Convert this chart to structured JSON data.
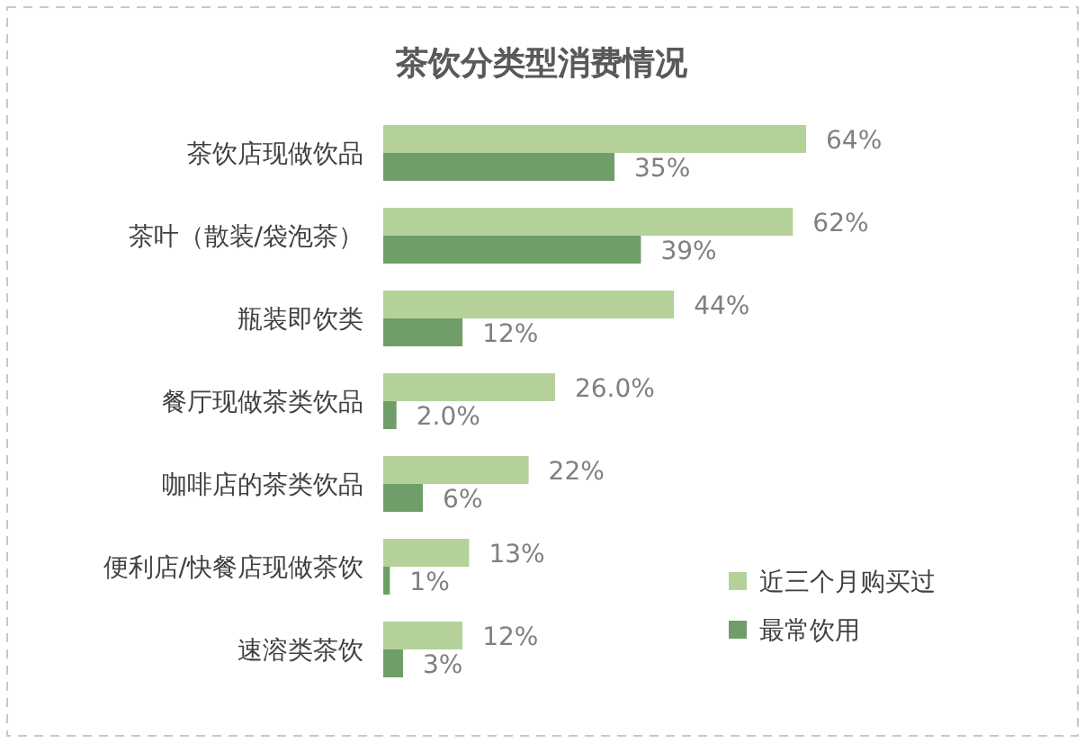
{
  "chart_data": {
    "type": "bar",
    "orientation": "horizontal",
    "title": "茶饮分类型消费情况",
    "categories": [
      "茶饮店现做饮品",
      "茶叶（散装/袋泡茶）",
      "瓶装即饮类",
      "餐厅现做茶类饮品",
      "咖啡店的茶类饮品",
      "便利店/快餐店现做茶饮",
      "速溶类茶饮"
    ],
    "series": [
      {
        "name": "近三个月购买过",
        "color": "#b5d19a",
        "values": [
          64,
          62,
          44,
          26.0,
          22,
          13,
          12
        ],
        "value_labels": [
          "64%",
          "62%",
          "44%",
          "26.0%",
          "22%",
          "13%",
          "12%"
        ]
      },
      {
        "name": "最常饮用",
        "color": "#6f9e68",
        "values": [
          35,
          39,
          12,
          2.0,
          6,
          1,
          3
        ],
        "value_labels": [
          "35%",
          "39%",
          "12%",
          "2.0%",
          "6%",
          "1%",
          "3%"
        ]
      }
    ],
    "legend": "bottom right"
  }
}
